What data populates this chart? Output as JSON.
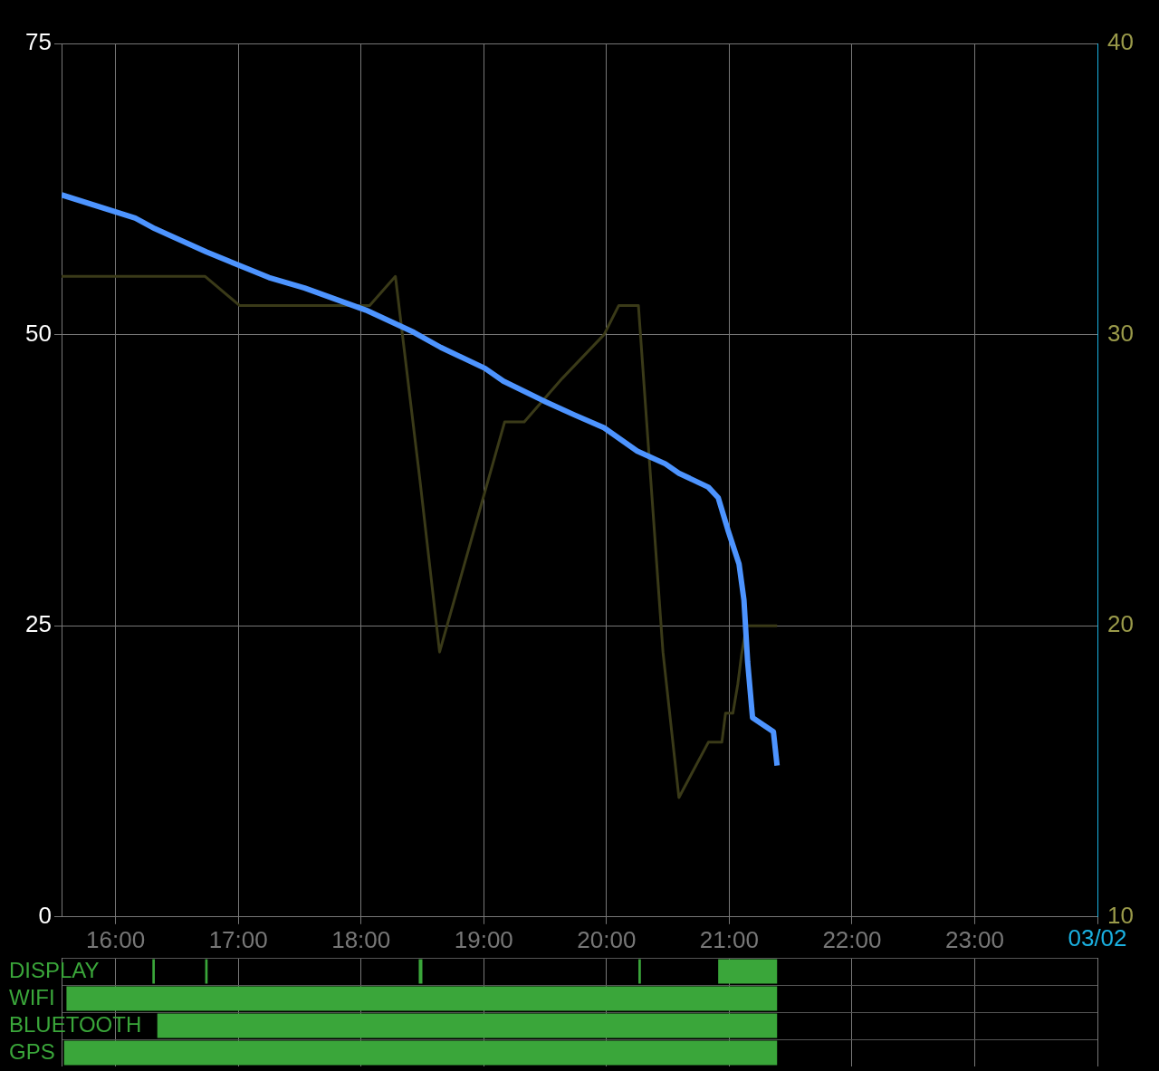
{
  "chart_data": [
    {
      "type": "line",
      "xlim": [
        15.56,
        24
      ],
      "xticks": [
        {
          "value": 16,
          "label": "16:00"
        },
        {
          "value": 17,
          "label": "17:00"
        },
        {
          "value": 18,
          "label": "18:00"
        },
        {
          "value": 19,
          "label": "19:00"
        },
        {
          "value": 20,
          "label": "20:00"
        },
        {
          "value": 21,
          "label": "21:00"
        },
        {
          "value": 22,
          "label": "22:00"
        },
        {
          "value": 23,
          "label": "23:00"
        },
        {
          "value": 24,
          "label": null
        }
      ],
      "annotations": [
        "03/02"
      ],
      "ylim": [
        0,
        75
      ],
      "yticks": [
        0,
        25,
        50,
        75
      ],
      "y2lim": [
        10,
        40
      ],
      "y2ticks": [
        10,
        20,
        30,
        40
      ],
      "grid": true,
      "legend": false,
      "marker": "none",
      "line_style": "solid",
      "series": [
        {
          "color": "#4d94ff",
          "x": [
            15.56,
            16.16,
            16.32,
            16.74,
            17.25,
            17.54,
            18.04,
            18.43,
            18.65,
            19.01,
            19.16,
            19.49,
            19.74,
            19.98,
            20.25,
            20.48,
            20.59,
            20.83,
            20.91,
            20.99,
            21.08,
            21.12,
            21.15,
            21.19,
            21.36,
            21.39
          ],
          "values": [
            62.0,
            60.0,
            59.1,
            57.1,
            54.9,
            54.0,
            52.1,
            50.2,
            48.9,
            47.1,
            46.0,
            44.3,
            43.1,
            42.0,
            40.0,
            38.9,
            38.1,
            36.9,
            36.0,
            33.2,
            30.3,
            27.2,
            21.9,
            17.1,
            15.9,
            13.0
          ]
        },
        {
          "color": "#3a3a18",
          "axis": "y2",
          "x": [
            15.56,
            16.73,
            17.01,
            18.07,
            18.28,
            18.48,
            18.64,
            19.17,
            19.33,
            19.64,
            19.98,
            20.1,
            20.26,
            20.46,
            20.59,
            20.83,
            20.94,
            20.97,
            21.03,
            21.07,
            21.1,
            21.14,
            21.39
          ],
          "values": [
            32.0,
            32.0,
            31.0,
            31.0,
            32.0,
            25.0,
            19.1,
            27.0,
            27.0,
            28.5,
            30.0,
            31.0,
            31.0,
            19.1,
            14.1,
            16.0,
            16.0,
            17.0,
            17.0,
            18.0,
            19.0,
            20.0,
            20.0
          ]
        }
      ]
    },
    {
      "type": "bar",
      "orientation": "horizontal",
      "categories": [
        "DISPLAY",
        "WIFI",
        "BLUETOOTH",
        "GPS"
      ],
      "xlim": [
        15.56,
        24
      ],
      "xticks": [
        {
          "value": 16,
          "label": null
        },
        {
          "value": 17,
          "label": null
        },
        {
          "value": 18,
          "label": null
        },
        {
          "value": 19,
          "label": null
        },
        {
          "value": 20,
          "label": null
        },
        {
          "value": 21,
          "label": null
        },
        {
          "value": 22,
          "label": null
        },
        {
          "value": 23,
          "label": null
        },
        {
          "value": 24,
          "label": null
        }
      ],
      "tick_labels": "y",
      "grid": true,
      "legend": false,
      "series": [
        {
          "color": "#3aa63a",
          "base": [
            20.91,
            15.6,
            16.34,
            15.58
          ],
          "values": [
            0.48,
            5.79,
            5.05,
            5.81
          ]
        },
        {
          "color": "#3aa63a",
          "base": [
            16.3,
            null,
            null,
            null
          ],
          "values": [
            0.02,
            null,
            null,
            null
          ]
        },
        {
          "color": "#3aa63a",
          "base": [
            16.73,
            null,
            null,
            null
          ],
          "values": [
            0.02,
            null,
            null,
            null
          ]
        },
        {
          "color": "#3aa63a",
          "base": [
            18.47,
            null,
            null,
            null
          ],
          "values": [
            0.03,
            null,
            null,
            null
          ]
        },
        {
          "color": "#3aa63a",
          "base": [
            20.26,
            null,
            null,
            null
          ],
          "values": [
            0.02,
            null,
            null,
            null
          ]
        }
      ]
    }
  ]
}
